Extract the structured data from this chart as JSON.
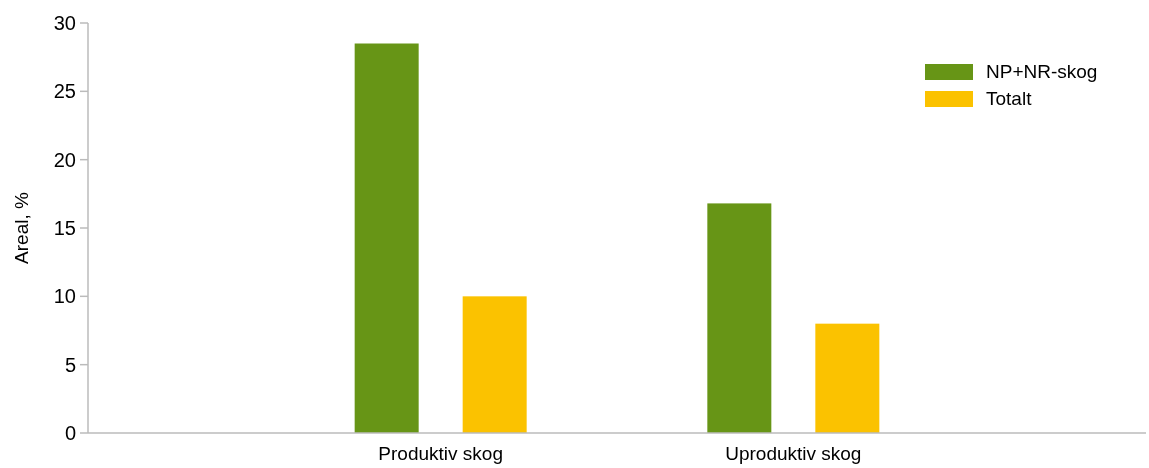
{
  "chart_data": {
    "type": "bar",
    "ylabel": "Areal, %",
    "categories": [
      "Produktiv skog",
      "Uproduktiv skog"
    ],
    "series": [
      {
        "name": "NP+NR-skog",
        "color": "#679516",
        "values": [
          28.5,
          16.8
        ]
      },
      {
        "name": "Totalt",
        "color": "#fbc200",
        "values": [
          10.0,
          8.0
        ]
      }
    ],
    "ylim": [
      0,
      30
    ],
    "yticks": [
      0,
      5,
      10,
      15,
      20,
      25,
      30
    ],
    "legend": "top right"
  }
}
